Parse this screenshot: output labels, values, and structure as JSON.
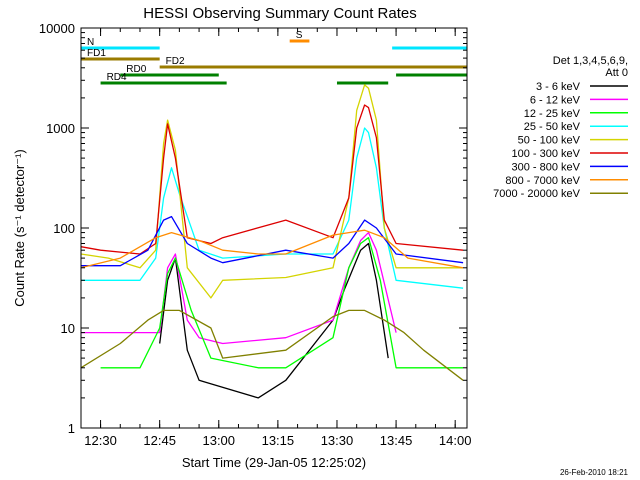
{
  "chart_data": {
    "type": "line",
    "title": "HESSI Observing Summary Count Rates",
    "xlabel": "Start Time (29-Jan-05 12:25:02)",
    "ylabel": "Count Rate (s⁻¹ detector⁻¹)",
    "yscale": "log",
    "ylim": [
      1,
      10000
    ],
    "xlim": [
      "12:25:02",
      "14:03:00"
    ],
    "x_ticks": [
      "12:30",
      "12:45",
      "13:00",
      "13:15",
      "13:30",
      "13:45",
      "14:00"
    ],
    "y_ticks": [
      "1",
      "10",
      "100",
      "1000",
      "10000"
    ],
    "grid": false,
    "legend": {
      "placement": "right",
      "title": "Det 1,3,4,5,6,9,",
      "subtitle": "Att 0"
    },
    "footer_date": "26-Feb-2010 18:21",
    "flags": [
      {
        "label": "N",
        "color": "#00e6ff",
        "segments": [
          [
            "12:25",
            "12:45"
          ],
          [
            "13:44",
            "14:03"
          ]
        ]
      },
      {
        "label": "S",
        "color": "#ff8c00",
        "segments": [
          [
            "13:18",
            "13:23"
          ]
        ]
      },
      {
        "label": "FD1",
        "color": "#9a7b00",
        "segments": [
          [
            "12:25",
            "12:45"
          ]
        ]
      },
      {
        "label": "FD2",
        "color": "#9a7b00",
        "segments": [
          [
            "12:45",
            "14:03"
          ]
        ]
      },
      {
        "label": "RD0",
        "color": "#008000",
        "segments": [
          [
            "12:35",
            "13:00"
          ],
          [
            "13:45",
            "14:03"
          ]
        ]
      },
      {
        "label": "RD4",
        "color": "#008000",
        "segments": [
          [
            "12:30",
            "13:02"
          ],
          [
            "13:30",
            "13:43"
          ]
        ]
      }
    ],
    "series": [
      {
        "name": "3 - 6 keV",
        "color": "#000000",
        "x": [
          "12:45",
          "12:47",
          "12:49",
          "12:52",
          "12:55",
          "13:10",
          "13:17",
          "13:29",
          "13:32",
          "13:36",
          "13:38",
          "13:40",
          "13:43"
        ],
        "y": [
          7,
          30,
          50,
          6,
          3,
          2,
          3,
          12,
          25,
          60,
          70,
          30,
          5
        ]
      },
      {
        "name": "6 - 12 keV",
        "color": "#ff00ff",
        "x": [
          "12:25",
          "12:45",
          "12:47",
          "12:49",
          "12:52",
          "12:55",
          "13:01",
          "13:17",
          "13:29",
          "13:33",
          "13:36",
          "13:38",
          "13:40",
          "13:45"
        ],
        "y": [
          9,
          9,
          40,
          55,
          12,
          8,
          7,
          8,
          12,
          40,
          75,
          90,
          60,
          9
        ]
      },
      {
        "name": "12 - 25 keV",
        "color": "#00ff00",
        "x": [
          "12:30",
          "12:40",
          "12:45",
          "12:47",
          "12:49",
          "12:53",
          "12:58",
          "13:10",
          "13:17",
          "13:29",
          "13:33",
          "13:36",
          "13:38",
          "13:41",
          "13:45",
          "14:02"
        ],
        "y": [
          4,
          4,
          10,
          35,
          50,
          15,
          5,
          4,
          4,
          8,
          40,
          70,
          80,
          30,
          4,
          4
        ]
      },
      {
        "name": "25 - 50 keV",
        "color": "#00ffff",
        "x": [
          "12:25",
          "12:30",
          "12:40",
          "12:44",
          "12:46",
          "12:48",
          "12:50",
          "12:55",
          "13:01",
          "13:17",
          "13:29",
          "13:33",
          "13:35",
          "13:37",
          "13:38",
          "13:40",
          "13:42",
          "13:45",
          "14:02"
        ],
        "y": [
          30,
          30,
          30,
          50,
          200,
          400,
          220,
          60,
          50,
          55,
          55,
          120,
          500,
          1000,
          900,
          400,
          100,
          30,
          25
        ]
      },
      {
        "name": "50 - 100 keV",
        "color": "#d4d400",
        "x": [
          "12:25",
          "12:32",
          "12:40",
          "12:44",
          "12:46",
          "12:47",
          "12:49",
          "12:52",
          "12:58",
          "13:01",
          "13:17",
          "13:29",
          "13:33",
          "13:35",
          "13:37",
          "13:38",
          "13:40",
          "13:42",
          "13:45",
          "14:02"
        ],
        "y": [
          55,
          50,
          40,
          60,
          700,
          1200,
          600,
          40,
          20,
          30,
          32,
          40,
          200,
          1500,
          2700,
          2500,
          1200,
          100,
          40,
          40
        ]
      },
      {
        "name": "100 - 300 keV",
        "color": "#dd0000",
        "x": [
          "12:25",
          "12:30",
          "12:40",
          "12:44",
          "12:46",
          "12:47",
          "12:49",
          "12:52",
          "12:58",
          "13:01",
          "13:17",
          "13:29",
          "13:33",
          "13:35",
          "13:37",
          "13:38",
          "13:40",
          "13:42",
          "13:45",
          "14:02"
        ],
        "y": [
          65,
          60,
          55,
          70,
          500,
          1100,
          500,
          80,
          70,
          80,
          120,
          80,
          200,
          1000,
          1700,
          1600,
          800,
          120,
          70,
          60
        ]
      },
      {
        "name": "300 - 800 keV",
        "color": "#0000ff",
        "x": [
          "12:25",
          "12:35",
          "12:42",
          "12:46",
          "12:48",
          "12:52",
          "12:58",
          "13:01",
          "13:17",
          "13:29",
          "13:33",
          "13:37",
          "13:40",
          "13:45",
          "14:02"
        ],
        "y": [
          42,
          42,
          60,
          120,
          130,
          70,
          50,
          45,
          60,
          50,
          70,
          120,
          100,
          55,
          45
        ]
      },
      {
        "name": "800 - 7000 keV",
        "color": "#ff8c00",
        "x": [
          "12:25",
          "12:35",
          "12:44",
          "12:48",
          "12:55",
          "13:01",
          "13:10",
          "13:17",
          "13:29",
          "13:33",
          "13:37",
          "13:42",
          "13:48",
          "14:02"
        ],
        "y": [
          40,
          50,
          80,
          90,
          75,
          60,
          55,
          55,
          85,
          90,
          95,
          80,
          50,
          40
        ]
      },
      {
        "name": "7000 - 20000 keV",
        "color": "#808000",
        "x": [
          "12:25",
          "12:35",
          "12:42",
          "12:46",
          "12:50",
          "12:58",
          "13:01",
          "13:17",
          "13:29",
          "13:33",
          "13:37",
          "13:42",
          "13:47",
          "13:52",
          "14:02"
        ],
        "y": [
          4,
          7,
          12,
          15,
          15,
          10,
          5,
          6,
          13,
          15,
          15,
          12,
          9,
          6,
          3
        ]
      }
    ]
  }
}
